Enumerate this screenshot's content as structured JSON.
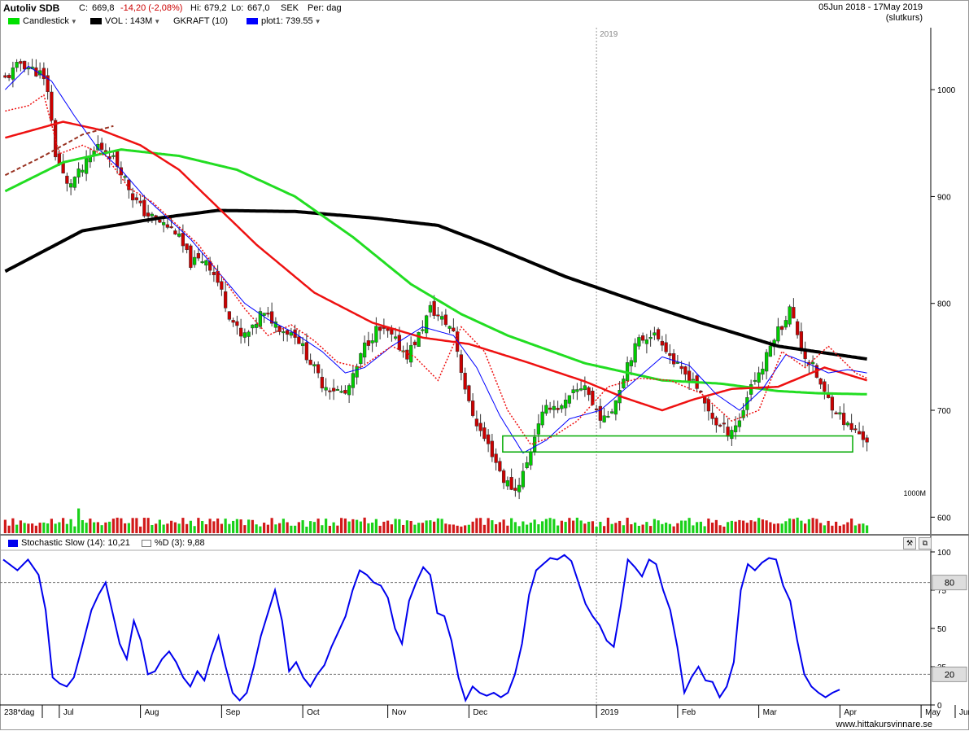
{
  "header": {
    "ticker": "Autoliv SDB",
    "close_label": "C:",
    "close_value": "669,8",
    "change": "-14,20 (-2,08%)",
    "hi_label": "Hi:",
    "hi_value": "679,2",
    "lo_label": "Lo:",
    "lo_value": "667,0",
    "currency": "SEK",
    "period": "Per: dag",
    "date_range": "05Jun 2018 - 17May 2019",
    "price_basis": "(slutkurs)"
  },
  "legend": [
    {
      "label": "Candlestick",
      "color": "#00e000"
    },
    {
      "label": "VOL : 143M",
      "color": "#000000"
    },
    {
      "label": "GKRAFT (10)",
      "color": ""
    },
    {
      "label": "plot1: 739.55",
      "color": "#0000ff"
    }
  ],
  "stoch_legend": {
    "label": "Stochastic Slow (14): 10,21",
    "d_label": "%D (3): 9,88",
    "color": "#0000ff"
  },
  "colors": {
    "up": "#00cc00",
    "down": "#cc0000",
    "ma_black": "#000000",
    "ma_green": "#22dd22",
    "ma_red": "#ee1111",
    "ma_blue": "#0000ff",
    "stoch": "#0000ee"
  },
  "footer": {
    "watermark": "www.hittakursvinnare.se",
    "bar_count": "238*dag"
  },
  "chart_data": [
    {
      "type": "candlestick",
      "y_ticks": [
        600,
        700,
        800,
        900,
        1000
      ],
      "ylim": [
        585,
        1058
      ],
      "year_label": "2019",
      "x_ticks": [
        "Jul",
        "Aug",
        "Sep",
        "Oct",
        "Nov",
        "Dec",
        "2019",
        "Feb",
        "Mar",
        "Apr",
        "May",
        "Jun"
      ],
      "close_path": [
        [
          0,
          1010
        ],
        [
          4,
          1025
        ],
        [
          9,
          1015
        ],
        [
          11,
          1000
        ],
        [
          13,
          940
        ],
        [
          16,
          910
        ],
        [
          20,
          925
        ],
        [
          24,
          948
        ],
        [
          27,
          940
        ],
        [
          30,
          925
        ],
        [
          33,
          900
        ],
        [
          36,
          885
        ],
        [
          40,
          876
        ],
        [
          44,
          868
        ],
        [
          48,
          838
        ],
        [
          52,
          842
        ],
        [
          55,
          820
        ],
        [
          58,
          790
        ],
        [
          61,
          768
        ],
        [
          64,
          775
        ],
        [
          66,
          790
        ],
        [
          69,
          785
        ],
        [
          72,
          775
        ],
        [
          75,
          772
        ],
        [
          79,
          745
        ],
        [
          82,
          725
        ],
        [
          85,
          720
        ],
        [
          88,
          715
        ],
        [
          90,
          730
        ],
        [
          93,
          760
        ],
        [
          96,
          775
        ],
        [
          99,
          772
        ],
        [
          102,
          760
        ],
        [
          104,
          752
        ],
        [
          107,
          770
        ],
        [
          110,
          795
        ],
        [
          113,
          785
        ],
        [
          116,
          775
        ],
        [
          118,
          738
        ],
        [
          120,
          705
        ],
        [
          123,
          680
        ],
        [
          126,
          660
        ],
        [
          129,
          635
        ],
        [
          132,
          625
        ],
        [
          135,
          650
        ],
        [
          138,
          690
        ],
        [
          141,
          705
        ],
        [
          144,
          702
        ],
        [
          147,
          715
        ],
        [
          150,
          725
        ],
        [
          152,
          705
        ],
        [
          155,
          690
        ],
        [
          158,
          710
        ],
        [
          161,
          745
        ],
        [
          164,
          765
        ],
        [
          167,
          772
        ],
        [
          170,
          765
        ],
        [
          173,
          745
        ],
        [
          175,
          735
        ],
        [
          178,
          730
        ],
        [
          181,
          705
        ],
        [
          184,
          688
        ],
        [
          187,
          680
        ],
        [
          190,
          690
        ],
        [
          193,
          725
        ],
        [
          196,
          740
        ],
        [
          199,
          770
        ],
        [
          201,
          780
        ],
        [
          203,
          795
        ],
        [
          205,
          772
        ],
        [
          207,
          750
        ],
        [
          209,
          740
        ],
        [
          212,
          715
        ],
        [
          215,
          700
        ],
        [
          218,
          685
        ],
        [
          221,
          678
        ],
        [
          223,
          672
        ]
      ],
      "black_ma": [
        [
          0,
          830
        ],
        [
          20,
          868
        ],
        [
          40,
          880
        ],
        [
          55,
          887
        ],
        [
          75,
          886
        ],
        [
          95,
          880
        ],
        [
          112,
          873
        ],
        [
          125,
          855
        ],
        [
          145,
          825
        ],
        [
          165,
          800
        ],
        [
          180,
          782
        ],
        [
          200,
          760
        ],
        [
          223,
          748
        ]
      ],
      "green_ma": [
        [
          0,
          905
        ],
        [
          15,
          932
        ],
        [
          30,
          944
        ],
        [
          45,
          938
        ],
        [
          60,
          925
        ],
        [
          75,
          900
        ],
        [
          90,
          862
        ],
        [
          105,
          818
        ],
        [
          118,
          790
        ],
        [
          130,
          770
        ],
        [
          150,
          744
        ],
        [
          170,
          728
        ],
        [
          185,
          725
        ],
        [
          200,
          718
        ],
        [
          210,
          716
        ],
        [
          223,
          715
        ]
      ],
      "red_ma": [
        [
          0,
          955
        ],
        [
          15,
          970
        ],
        [
          25,
          962
        ],
        [
          35,
          948
        ],
        [
          45,
          925
        ],
        [
          55,
          890
        ],
        [
          65,
          855
        ],
        [
          80,
          810
        ],
        [
          95,
          782
        ],
        [
          108,
          768
        ],
        [
          120,
          762
        ],
        [
          135,
          745
        ],
        [
          150,
          727
        ],
        [
          160,
          712
        ],
        [
          170,
          700
        ],
        [
          178,
          710
        ],
        [
          188,
          720
        ],
        [
          200,
          722
        ],
        [
          212,
          740
        ],
        [
          223,
          728
        ]
      ],
      "blue_ma": [
        [
          0,
          1000
        ],
        [
          6,
          1022
        ],
        [
          12,
          1008
        ],
        [
          18,
          975
        ],
        [
          24,
          945
        ],
        [
          30,
          925
        ],
        [
          36,
          900
        ],
        [
          42,
          880
        ],
        [
          48,
          860
        ],
        [
          55,
          830
        ],
        [
          62,
          800
        ],
        [
          68,
          785
        ],
        [
          75,
          772
        ],
        [
          82,
          755
        ],
        [
          88,
          735
        ],
        [
          93,
          740
        ],
        [
          100,
          760
        ],
        [
          108,
          778
        ],
        [
          116,
          770
        ],
        [
          122,
          740
        ],
        [
          128,
          695
        ],
        [
          134,
          660
        ],
        [
          140,
          672
        ],
        [
          146,
          692
        ],
        [
          154,
          700
        ],
        [
          162,
          725
        ],
        [
          170,
          750
        ],
        [
          177,
          742
        ],
        [
          184,
          715
        ],
        [
          190,
          700
        ],
        [
          196,
          720
        ],
        [
          202,
          752
        ],
        [
          207,
          745
        ],
        [
          213,
          735
        ],
        [
          218,
          738
        ],
        [
          223,
          735
        ]
      ],
      "dotted_red": [
        [
          0,
          980
        ],
        [
          6,
          985
        ],
        [
          10,
          995
        ],
        [
          14,
          940
        ],
        [
          20,
          948
        ],
        [
          26,
          938
        ],
        [
          32,
          908
        ],
        [
          38,
          895
        ],
        [
          44,
          875
        ],
        [
          50,
          855
        ],
        [
          56,
          825
        ],
        [
          62,
          795
        ],
        [
          68,
          770
        ],
        [
          74,
          780
        ],
        [
          80,
          765
        ],
        [
          86,
          745
        ],
        [
          92,
          740
        ],
        [
          100,
          760
        ],
        [
          106,
          750
        ],
        [
          112,
          728
        ],
        [
          118,
          778
        ],
        [
          124,
          755
        ],
        [
          130,
          700
        ],
        [
          136,
          668
        ],
        [
          142,
          676
        ],
        [
          148,
          690
        ],
        [
          156,
          722
        ],
        [
          164,
          730
        ],
        [
          172,
          728
        ],
        [
          180,
          716
        ],
        [
          188,
          690
        ],
        [
          195,
          700
        ],
        [
          201,
          755
        ],
        [
          207,
          740
        ],
        [
          213,
          760
        ],
        [
          220,
          735
        ],
        [
          223,
          730
        ]
      ],
      "dashed_brown": [
        [
          0,
          920
        ],
        [
          10,
          938
        ],
        [
          20,
          958
        ],
        [
          28,
          966
        ]
      ],
      "support_box_y": [
        661,
        676
      ],
      "volume_label": "1000M"
    },
    {
      "type": "line",
      "name": "Stochastic Slow (14)",
      "ylim": [
        0,
        100
      ],
      "y_ticks": [
        0,
        25,
        50,
        75,
        100
      ],
      "levels": [
        80,
        20
      ],
      "values": [
        [
          0,
          95
        ],
        [
          4,
          88
        ],
        [
          7,
          95
        ],
        [
          10,
          85
        ],
        [
          12,
          62
        ],
        [
          14,
          18
        ],
        [
          16,
          14
        ],
        [
          18,
          12
        ],
        [
          20,
          18
        ],
        [
          22,
          35
        ],
        [
          25,
          62
        ],
        [
          27,
          72
        ],
        [
          29,
          80
        ],
        [
          31,
          60
        ],
        [
          33,
          40
        ],
        [
          35,
          30
        ],
        [
          37,
          55
        ],
        [
          39,
          42
        ],
        [
          41,
          20
        ],
        [
          43,
          22
        ],
        [
          45,
          30
        ],
        [
          47,
          35
        ],
        [
          49,
          28
        ],
        [
          51,
          18
        ],
        [
          53,
          12
        ],
        [
          55,
          22
        ],
        [
          57,
          16
        ],
        [
          59,
          32
        ],
        [
          61,
          45
        ],
        [
          63,
          25
        ],
        [
          65,
          8
        ],
        [
          67,
          3
        ],
        [
          69,
          8
        ],
        [
          71,
          25
        ],
        [
          73,
          45
        ],
        [
          75,
          60
        ],
        [
          77,
          75
        ],
        [
          79,
          55
        ],
        [
          81,
          22
        ],
        [
          83,
          28
        ],
        [
          85,
          18
        ],
        [
          87,
          12
        ],
        [
          89,
          20
        ],
        [
          91,
          26
        ],
        [
          93,
          38
        ],
        [
          95,
          48
        ],
        [
          97,
          58
        ],
        [
          99,
          75
        ],
        [
          101,
          88
        ],
        [
          103,
          85
        ],
        [
          105,
          80
        ],
        [
          107,
          78
        ],
        [
          109,
          70
        ],
        [
          111,
          50
        ],
        [
          113,
          40
        ],
        [
          115,
          68
        ],
        [
          117,
          80
        ],
        [
          119,
          90
        ],
        [
          121,
          85
        ],
        [
          123,
          60
        ],
        [
          125,
          58
        ],
        [
          127,
          42
        ],
        [
          129,
          18
        ],
        [
          131,
          3
        ],
        [
          133,
          12
        ],
        [
          135,
          8
        ],
        [
          137,
          6
        ],
        [
          139,
          8
        ],
        [
          141,
          5
        ],
        [
          143,
          8
        ],
        [
          145,
          20
        ],
        [
          147,
          40
        ],
        [
          149,
          72
        ],
        [
          151,
          88
        ],
        [
          153,
          92
        ],
        [
          155,
          96
        ],
        [
          157,
          95
        ],
        [
          159,
          98
        ],
        [
          161,
          94
        ],
        [
          163,
          80
        ],
        [
          165,
          66
        ],
        [
          167,
          58
        ],
        [
          169,
          52
        ],
        [
          171,
          42
        ],
        [
          173,
          38
        ],
        [
          175,
          65
        ],
        [
          177,
          95
        ],
        [
          179,
          90
        ],
        [
          181,
          84
        ],
        [
          183,
          95
        ],
        [
          185,
          92
        ],
        [
          187,
          75
        ],
        [
          189,
          62
        ],
        [
          191,
          38
        ],
        [
          193,
          8
        ],
        [
          195,
          18
        ],
        [
          197,
          25
        ],
        [
          199,
          16
        ],
        [
          201,
          15
        ],
        [
          203,
          5
        ],
        [
          205,
          12
        ],
        [
          207,
          28
        ],
        [
          209,
          75
        ],
        [
          211,
          92
        ],
        [
          213,
          88
        ],
        [
          215,
          93
        ],
        [
          217,
          96
        ],
        [
          219,
          95
        ],
        [
          221,
          78
        ],
        [
          223,
          68
        ],
        [
          225,
          42
        ],
        [
          227,
          20
        ],
        [
          229,
          12
        ],
        [
          231,
          8
        ],
        [
          233,
          5
        ],
        [
          235,
          8
        ],
        [
          237,
          10
        ]
      ]
    }
  ]
}
